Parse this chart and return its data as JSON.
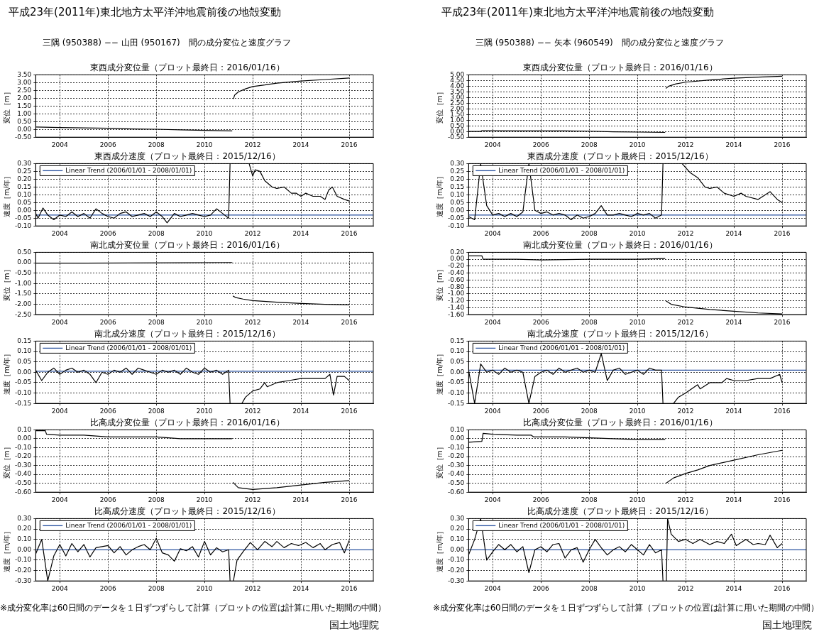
{
  "chart_data": [
    {
      "type": "line",
      "title": "東西成分変位量（プロット最終日：2016/01/16）",
      "ylabel": "変位［m］",
      "grid": true,
      "annotations": [
        "平成23年(2011年)東北地方太平洋沖地震前後の地殻変動",
        "三隅 (950388) −− 山田 (950167)　間の成分変位と速度グラフ"
      ],
      "xlim": [
        2003,
        2017
      ],
      "xticks": [
        2004,
        2006,
        2008,
        2010,
        2012,
        2014,
        2016
      ],
      "ylim": [
        -0.5,
        3.5
      ],
      "yticks": [
        {
          "value": -0.5,
          "label": "-0.50"
        },
        {
          "value": 0,
          "label": "0.00"
        },
        {
          "value": 0.5,
          "label": "0.50"
        },
        {
          "value": 1,
          "label": "1.00"
        },
        {
          "value": 1.5,
          "label": "1.50"
        },
        {
          "value": 2,
          "label": "2.00"
        },
        {
          "value": 2.5,
          "label": "2.50"
        },
        {
          "value": 3,
          "label": "3.00"
        },
        {
          "value": 3.5,
          "label": "3.50"
        }
      ],
      "series": [
        {
          "color": "#000000",
          "x": [
            2003,
            2004,
            2005,
            2006,
            2007,
            2008,
            2009,
            2010,
            2011.15,
            2011.17,
            2011.2,
            2011.25,
            2011.4,
            2011.7,
            2012,
            2012.5,
            2013,
            2014,
            2015,
            2016
          ],
          "values": [
            0.15,
            0.12,
            0.1,
            0.07,
            0.03,
            0.01,
            -0.03,
            -0.06,
            -0.1,
            null,
            1.95,
            2.2,
            2.4,
            2.6,
            2.75,
            2.85,
            2.97,
            3.1,
            3.2,
            3.3
          ]
        }
      ]
    },
    {
      "type": "line",
      "title": "東西成分速度（プロット最終日：2015/12/16）",
      "ylabel": "速度［m/年］",
      "grid": true,
      "legend": "top left",
      "xlim": [
        2003,
        2017
      ],
      "xticks": [
        2004,
        2006,
        2008,
        2010,
        2012,
        2014,
        2016
      ],
      "ylim": [
        -0.1,
        0.3
      ],
      "yticks": [
        {
          "value": -0.1,
          "label": "-0.10"
        },
        {
          "value": -0.05,
          "label": "-0.05"
        },
        {
          "value": 0,
          "label": "0.00"
        },
        {
          "value": 0.05,
          "label": "0.05"
        },
        {
          "value": 0.1,
          "label": "0.10"
        },
        {
          "value": 0.15,
          "label": "0.15"
        },
        {
          "value": 0.2,
          "label": "0.20"
        },
        {
          "value": 0.25,
          "label": "0.25"
        },
        {
          "value": 0.3,
          "label": "0.30"
        }
      ],
      "series": [
        {
          "color": "#000000",
          "x": [
            2003,
            2003.1,
            2003.3,
            2003.5,
            2003.75,
            2004,
            2004.25,
            2004.5,
            2004.75,
            2005,
            2005.25,
            2005.5,
            2005.75,
            2006,
            2006.25,
            2006.5,
            2006.75,
            2007,
            2007.25,
            2007.5,
            2007.75,
            2008,
            2008.25,
            2008.45,
            2008.75,
            2009,
            2009.25,
            2009.5,
            2009.75,
            2010,
            2010.25,
            2010.5,
            2010.75,
            2011,
            2011.06,
            2011.5,
            2011.85,
            2012,
            2012.1,
            2012.3,
            2012.5,
            2012.8,
            2013,
            2013.3,
            2013.6,
            2013.8,
            2014,
            2014.2,
            2014.5,
            2014.8,
            2015,
            2015.15,
            2015.3,
            2015.5,
            2015.8,
            2016
          ],
          "values": [
            -0.02,
            -0.05,
            0.015,
            -0.03,
            -0.06,
            -0.03,
            -0.04,
            -0.01,
            -0.04,
            -0.02,
            -0.05,
            0.01,
            -0.02,
            -0.04,
            -0.05,
            -0.02,
            -0.01,
            -0.04,
            -0.03,
            -0.02,
            -0.04,
            -0.01,
            -0.04,
            -0.08,
            -0.02,
            -0.04,
            -0.03,
            -0.02,
            -0.03,
            -0.04,
            -0.03,
            0.01,
            -0.02,
            -0.05,
            0.3,
            null,
            0.3,
            0.22,
            0.26,
            0.25,
            0.19,
            0.15,
            0.14,
            0.15,
            0.11,
            0.11,
            0.09,
            0.11,
            0.09,
            0.09,
            0.07,
            0.13,
            0.15,
            0.09,
            0.07,
            0.06
          ]
        },
        {
          "name": "Linear Trend (2006/01/01 - 2008/01/01)",
          "color": "#2a52a0",
          "x": [
            2003,
            2017
          ],
          "values": [
            -0.03,
            -0.03
          ]
        }
      ]
    },
    {
      "type": "line",
      "title": "南北成分変位量（プロット最終日：2016/01/16）",
      "ylabel": "変位［m］",
      "grid": true,
      "xlim": [
        2003,
        2017
      ],
      "xticks": [
        2004,
        2006,
        2008,
        2010,
        2012,
        2014,
        2016
      ],
      "ylim": [
        -2.5,
        0.5
      ],
      "yticks": [
        {
          "value": -2.5,
          "label": "-2.50"
        },
        {
          "value": -2,
          "label": "-2.00"
        },
        {
          "value": -1.5,
          "label": "-1.50"
        },
        {
          "value": -1,
          "label": "-1.00"
        },
        {
          "value": -0.5,
          "label": "-0.50"
        },
        {
          "value": 0,
          "label": "0.00"
        },
        {
          "value": 0.5,
          "label": "0.50"
        }
      ],
      "series": [
        {
          "color": "#000000",
          "x": [
            2003,
            2005,
            2007,
            2009,
            2011.15,
            2011.17,
            2011.18,
            2011.3,
            2011.6,
            2012,
            2013,
            2014,
            2015,
            2016
          ],
          "values": [
            -0.02,
            -0.02,
            -0.01,
            0,
            0.01,
            null,
            -1.6,
            -1.68,
            -1.75,
            -1.82,
            -1.9,
            -1.96,
            -2,
            -2.03
          ]
        }
      ]
    },
    {
      "type": "line",
      "title": "南北成分速度（プロット最終日：2015/12/16）",
      "ylabel": "速度［m/年］",
      "grid": true,
      "legend": "top left",
      "xlim": [
        2003,
        2017
      ],
      "xticks": [
        2004,
        2006,
        2008,
        2010,
        2012,
        2014,
        2016
      ],
      "ylim": [
        -0.15,
        0.15
      ],
      "yticks": [
        {
          "value": -0.15,
          "label": "-0.15"
        },
        {
          "value": -0.1,
          "label": "-0.10"
        },
        {
          "value": -0.05,
          "label": "-0.05"
        },
        {
          "value": 0,
          "label": "0.00"
        },
        {
          "value": 0.05,
          "label": "0.05"
        },
        {
          "value": 0.1,
          "label": "0.10"
        },
        {
          "value": 0.15,
          "label": "0.15"
        }
      ],
      "series": [
        {
          "color": "#000000",
          "x": [
            2003,
            2003.25,
            2003.5,
            2003.75,
            2004,
            2004.25,
            2004.5,
            2004.75,
            2005,
            2005.25,
            2005.5,
            2005.75,
            2006,
            2006.25,
            2006.5,
            2006.75,
            2007,
            2007.25,
            2007.5,
            2007.75,
            2008,
            2008.25,
            2008.5,
            2008.75,
            2009,
            2009.25,
            2009.5,
            2009.75,
            2010,
            2010.25,
            2010.5,
            2010.75,
            2011,
            2011.06,
            2011.3,
            2011.55,
            2011.7,
            2012,
            2012.3,
            2012.5,
            2012.6,
            2013,
            2013.5,
            2014,
            2014.5,
            2015,
            2015.2,
            2015.35,
            2015.5,
            2015.8,
            2016
          ],
          "values": [
            0.01,
            -0.04,
            0,
            0.02,
            -0.01,
            0.01,
            0.02,
            0,
            0.01,
            -0.01,
            -0.05,
            0,
            -0.01,
            0.01,
            0,
            0.02,
            -0.01,
            0.02,
            0.01,
            0,
            -0.01,
            0.01,
            0,
            0.01,
            -0.01,
            0.02,
            0,
            -0.01,
            0.02,
            0,
            0.01,
            -0.01,
            0.01,
            -0.15,
            null,
            -0.15,
            -0.12,
            -0.09,
            -0.08,
            -0.05,
            -0.07,
            -0.05,
            -0.04,
            -0.03,
            -0.03,
            -0.03,
            -0.01,
            -0.11,
            -0.02,
            -0.02,
            -0.04
          ]
        },
        {
          "name": "Linear Trend (2006/01/01 - 2008/01/01)",
          "color": "#2a52a0",
          "x": [
            2003,
            2017
          ],
          "values": [
            0.005,
            0.005
          ]
        }
      ]
    },
    {
      "type": "line",
      "title": "比高成分変位量（プロット最終日：2016/01/16）",
      "ylabel": "変位［m］",
      "grid": true,
      "xlim": [
        2003,
        2017
      ],
      "xticks": [
        2004,
        2006,
        2008,
        2010,
        2012,
        2014,
        2016
      ],
      "ylim": [
        -0.6,
        0.1
      ],
      "yticks": [
        {
          "value": -0.6,
          "label": "-0.60"
        },
        {
          "value": -0.5,
          "label": "-0.50"
        },
        {
          "value": -0.4,
          "label": "-0.40"
        },
        {
          "value": -0.3,
          "label": "-0.30"
        },
        {
          "value": -0.2,
          "label": "-0.20"
        },
        {
          "value": -0.1,
          "label": "-0.10"
        },
        {
          "value": 0,
          "label": "0.00"
        },
        {
          "value": 0.1,
          "label": "0.10"
        }
      ],
      "series": [
        {
          "color": "#000000",
          "x": [
            2003,
            2003.4,
            2003.45,
            2004,
            2005,
            2006,
            2007,
            2008,
            2009,
            2010,
            2011.15,
            2011.17,
            2011.18,
            2011.4,
            2012,
            2012.5,
            2013,
            2014,
            2015,
            2016
          ],
          "values": [
            0.09,
            0.09,
            0.05,
            0.04,
            0.04,
            0.02,
            0.02,
            0.02,
            0,
            0,
            0,
            null,
            -0.49,
            -0.55,
            -0.57,
            -0.56,
            -0.55,
            -0.52,
            -0.49,
            -0.47
          ]
        }
      ]
    },
    {
      "type": "line",
      "title": "比高成分速度（プロット最終日：2015/12/16）",
      "ylabel": "速度［m/年］",
      "grid": true,
      "legend": "top left",
      "annotations": [
        "※成分変化率は60日間のデータを１日ずつずらして計算（プロットの位置は計算に用いた期間の中間）",
        "国土地理院"
      ],
      "xlim": [
        2003,
        2017
      ],
      "xticks": [
        2004,
        2006,
        2008,
        2010,
        2012,
        2014,
        2016
      ],
      "ylim": [
        -0.3,
        0.3
      ],
      "yticks": [
        {
          "value": -0.3,
          "label": "-0.30"
        },
        {
          "value": -0.2,
          "label": "-0.20"
        },
        {
          "value": -0.1,
          "label": "-0.10"
        },
        {
          "value": 0,
          "label": "0.00"
        },
        {
          "value": 0.1,
          "label": "0.10"
        },
        {
          "value": 0.2,
          "label": "0.20"
        },
        {
          "value": 0.3,
          "label": "0.30"
        }
      ],
      "series": [
        {
          "color": "#000000",
          "x": [
            2003,
            2003.25,
            2003.5,
            2003.75,
            2004,
            2004.25,
            2004.5,
            2004.75,
            2005,
            2005.25,
            2005.5,
            2005.75,
            2006,
            2006.25,
            2006.5,
            2006.75,
            2007,
            2007.25,
            2007.5,
            2007.75,
            2008,
            2008.25,
            2008.5,
            2008.75,
            2009,
            2009.25,
            2009.5,
            2009.75,
            2010,
            2010.25,
            2010.5,
            2010.75,
            2011,
            2011.06,
            2011.13,
            2011.2,
            2011.35,
            2011.6,
            2011.9,
            2012.2,
            2012.5,
            2012.8,
            2013,
            2013.3,
            2013.6,
            2013.9,
            2014.2,
            2014.5,
            2014.8,
            2015,
            2015.3,
            2015.6,
            2015.8,
            2016
          ],
          "values": [
            -0.04,
            0.1,
            -0.3,
            -0.06,
            0.05,
            -0.06,
            0.06,
            -0.02,
            0.05,
            -0.07,
            0.02,
            0.03,
            0.04,
            -0.03,
            0.03,
            -0.05,
            0,
            0.03,
            0.05,
            0,
            0.11,
            -0.03,
            -0.05,
            -0.11,
            0.01,
            -0.01,
            0.03,
            -0.07,
            0.08,
            -0.05,
            0.02,
            -0.02,
            0,
            -0.3,
            null,
            -0.3,
            -0.1,
            -0.02,
            0.07,
            0,
            0.08,
            0.03,
            0.08,
            0.02,
            0.06,
            0.04,
            0.07,
            0.02,
            0.06,
            0,
            0.05,
            0.07,
            -0.03,
            0.09
          ]
        },
        {
          "name": "Linear Trend (2006/01/01 - 2008/01/01)",
          "color": "#2a52a0",
          "x": [
            2003,
            2017
          ],
          "values": [
            0,
            0
          ]
        }
      ]
    },
    {
      "type": "line",
      "title": "東西成分変位量（プロット最終日：2016/01/16）",
      "ylabel": "変位［m］",
      "grid": true,
      "annotations": [
        "平成23年(2011年)東北地方太平洋沖地震前後の地殻変動",
        "三隅 (950388) −− 矢本 (960549)　間の成分変位と速度グラフ"
      ],
      "xlim": [
        2003,
        2017
      ],
      "xticks": [
        2004,
        2006,
        2008,
        2010,
        2012,
        2014,
        2016
      ],
      "ylim": [
        -0.5,
        5
      ],
      "yticks": [
        {
          "value": -0.5,
          "label": "-0.50"
        },
        {
          "value": 0,
          "label": "0.00"
        },
        {
          "value": 0.5,
          "label": "0.50"
        },
        {
          "value": 1,
          "label": "1.00"
        },
        {
          "value": 1.5,
          "label": "1.50"
        },
        {
          "value": 2,
          "label": "2.00"
        },
        {
          "value": 2.5,
          "label": "2.50"
        },
        {
          "value": 3,
          "label": "3.00"
        },
        {
          "value": 3.5,
          "label": "3.50"
        },
        {
          "value": 4,
          "label": "4.00"
        },
        {
          "value": 4.5,
          "label": "4.50"
        },
        {
          "value": 5,
          "label": "5.00"
        }
      ],
      "series": [
        {
          "color": "#000000",
          "x": [
            2003,
            2003.5,
            2003.55,
            2005,
            2007,
            2008,
            2009,
            2010,
            2011.15,
            2011.17,
            2011.18,
            2011.3,
            2011.6,
            2012,
            2013,
            2014,
            2015,
            2016
          ],
          "values": [
            0,
            0,
            0.07,
            0.05,
            0.05,
            0.03,
            -0.02,
            -0.05,
            -0.08,
            null,
            3.8,
            4,
            4.2,
            4.35,
            4.55,
            4.7,
            4.8,
            4.88
          ]
        }
      ]
    },
    {
      "type": "line",
      "title": "東西成分速度（プロット最終日：2015/12/16）",
      "ylabel": "速度［m/年］",
      "grid": true,
      "legend": "top left",
      "xlim": [
        2003,
        2017
      ],
      "xticks": [
        2004,
        2006,
        2008,
        2010,
        2012,
        2014,
        2016
      ],
      "ylim": [
        -0.1,
        0.3
      ],
      "yticks": [
        {
          "value": -0.1,
          "label": "-0.10"
        },
        {
          "value": -0.05,
          "label": "-0.05"
        },
        {
          "value": 0,
          "label": "0.00"
        },
        {
          "value": 0.05,
          "label": "0.05"
        },
        {
          "value": 0.1,
          "label": "0.10"
        },
        {
          "value": 0.15,
          "label": "0.15"
        },
        {
          "value": 0.2,
          "label": "0.20"
        },
        {
          "value": 0.25,
          "label": "0.25"
        },
        {
          "value": 0.3,
          "label": "0.30"
        }
      ],
      "series": [
        {
          "color": "#000000",
          "x": [
            2003,
            2003.25,
            2003.5,
            2003.75,
            2004,
            2004.25,
            2004.5,
            2004.75,
            2005,
            2005.25,
            2005.5,
            2005.75,
            2006,
            2006.25,
            2006.5,
            2006.75,
            2007,
            2007.25,
            2007.5,
            2007.75,
            2008,
            2008.25,
            2008.5,
            2008.75,
            2009,
            2009.25,
            2009.5,
            2009.75,
            2010,
            2010.25,
            2010.5,
            2010.75,
            2011,
            2011.06,
            2011.5,
            2011.85,
            2012.2,
            2012.5,
            2012.8,
            2013,
            2013.3,
            2013.6,
            2014,
            2014.3,
            2014.5,
            2015,
            2015.5,
            2015.8,
            2016
          ],
          "values": [
            -0.04,
            -0.06,
            0.3,
            0.03,
            -0.03,
            -0.02,
            -0.04,
            -0.02,
            -0.04,
            -0.01,
            0.3,
            0,
            -0.02,
            -0.01,
            -0.03,
            -0.02,
            -0.03,
            -0.06,
            -0.03,
            -0.05,
            -0.04,
            -0.02,
            0.03,
            -0.03,
            -0.03,
            -0.02,
            -0.03,
            -0.04,
            -0.02,
            -0.03,
            -0.02,
            -0.05,
            -0.03,
            0.3,
            null,
            0.3,
            0.24,
            0.21,
            0.15,
            0.14,
            0.15,
            0.11,
            0.09,
            0.11,
            0.09,
            0.07,
            0.12,
            0.07,
            0.05
          ]
        },
        {
          "name": "Linear Trend (2006/01/01 - 2008/01/01)",
          "color": "#2a52a0",
          "x": [
            2003,
            2017
          ],
          "values": [
            -0.03,
            -0.03
          ]
        }
      ]
    },
    {
      "type": "line",
      "title": "南北成分変位量（プロット最終日：2016/01/16）",
      "ylabel": "変位［m］",
      "grid": true,
      "xlim": [
        2003,
        2017
      ],
      "xticks": [
        2004,
        2006,
        2008,
        2010,
        2012,
        2014,
        2016
      ],
      "ylim": [
        -1.6,
        0.2
      ],
      "yticks": [
        {
          "value": -1.6,
          "label": "-1.60"
        },
        {
          "value": -1.4,
          "label": "-1.40"
        },
        {
          "value": -1.2,
          "label": "-1.20"
        },
        {
          "value": -1,
          "label": "-1.00"
        },
        {
          "value": -0.8,
          "label": "-0.80"
        },
        {
          "value": -0.6,
          "label": "-0.60"
        },
        {
          "value": -0.4,
          "label": "-0.40"
        },
        {
          "value": -0.2,
          "label": "-0.20"
        },
        {
          "value": 0,
          "label": "0.00"
        },
        {
          "value": 0.2,
          "label": "0.20"
        }
      ],
      "series": [
        {
          "color": "#000000",
          "x": [
            2003,
            2003.55,
            2003.6,
            2005,
            2006,
            2008,
            2010,
            2011.15,
            2011.17,
            2011.18,
            2011.4,
            2012,
            2013,
            2014,
            2015,
            2016
          ],
          "values": [
            0.1,
            0.1,
            0,
            0,
            -0.02,
            0,
            0,
            0.02,
            null,
            -1.2,
            -1.3,
            -1.38,
            -1.45,
            -1.5,
            -1.55,
            -1.58
          ]
        }
      ]
    },
    {
      "type": "line",
      "title": "南北成分速度（プロット最終日：2015/12/16）",
      "ylabel": "速度［m/年］",
      "grid": true,
      "legend": "top left",
      "xlim": [
        2003,
        2017
      ],
      "xticks": [
        2004,
        2006,
        2008,
        2010,
        2012,
        2014,
        2016
      ],
      "ylim": [
        -0.15,
        0.15
      ],
      "yticks": [
        {
          "value": -0.15,
          "label": "-0.15"
        },
        {
          "value": -0.1,
          "label": "-0.10"
        },
        {
          "value": -0.05,
          "label": "-0.05"
        },
        {
          "value": 0,
          "label": "0.00"
        },
        {
          "value": 0.05,
          "label": "0.05"
        },
        {
          "value": 0.1,
          "label": "0.10"
        },
        {
          "value": 0.15,
          "label": "0.15"
        }
      ],
      "series": [
        {
          "color": "#000000",
          "x": [
            2003,
            2003.25,
            2003.5,
            2003.75,
            2004,
            2004.25,
            2004.5,
            2004.75,
            2005,
            2005.25,
            2005.5,
            2005.75,
            2006,
            2006.25,
            2006.5,
            2006.75,
            2007,
            2007.25,
            2007.5,
            2007.75,
            2008,
            2008.25,
            2008.5,
            2008.75,
            2009,
            2009.25,
            2009.5,
            2009.75,
            2010,
            2010.25,
            2010.5,
            2010.75,
            2011,
            2011.06,
            2011.3,
            2011.5,
            2011.7,
            2012,
            2012.5,
            2012.6,
            2013,
            2013.5,
            2013.7,
            2014,
            2014.5,
            2015,
            2015.5,
            2015.9,
            2016
          ],
          "values": [
            0.01,
            -0.15,
            0.04,
            0,
            0.01,
            -0.01,
            0.02,
            0,
            0.01,
            0,
            -0.15,
            -0.02,
            0,
            0.01,
            -0.01,
            0.02,
            0,
            0.01,
            0.02,
            0,
            0.01,
            0,
            0.09,
            -0.04,
            0.01,
            0.02,
            -0.01,
            0,
            0.01,
            -0.01,
            0.02,
            0.01,
            0.01,
            -0.15,
            null,
            -0.15,
            -0.12,
            -0.1,
            -0.06,
            -0.08,
            -0.05,
            -0.05,
            -0.03,
            -0.04,
            -0.04,
            -0.03,
            -0.03,
            -0.01,
            -0.05
          ]
        },
        {
          "name": "Linear Trend (2006/01/01 - 2008/01/01)",
          "color": "#2a52a0",
          "x": [
            2003,
            2017
          ],
          "values": [
            0.01,
            0.01
          ]
        }
      ]
    },
    {
      "type": "line",
      "title": "比高成分変位量（プロット最終日：2016/01/16）",
      "ylabel": "変位［m］",
      "grid": true,
      "xlim": [
        2003,
        2017
      ],
      "xticks": [
        2004,
        2006,
        2008,
        2010,
        2012,
        2014,
        2016
      ],
      "ylim": [
        -0.6,
        0.1
      ],
      "yticks": [
        {
          "value": -0.6,
          "label": "-0.60"
        },
        {
          "value": -0.5,
          "label": "-0.50"
        },
        {
          "value": -0.4,
          "label": "-0.40"
        },
        {
          "value": -0.3,
          "label": "-0.30"
        },
        {
          "value": -0.2,
          "label": "-0.20"
        },
        {
          "value": -0.1,
          "label": "-0.10"
        },
        {
          "value": 0,
          "label": "0.00"
        },
        {
          "value": 0.1,
          "label": "0.10"
        }
      ],
      "series": [
        {
          "color": "#000000",
          "x": [
            2003,
            2003.55,
            2003.6,
            2004,
            2005,
            2005.6,
            2005.7,
            2007,
            2008,
            2009,
            2010,
            2011.15,
            2011.17,
            2011.18,
            2011.5,
            2012,
            2012.5,
            2013,
            2014,
            2015,
            2016
          ],
          "values": [
            -0.04,
            -0.03,
            0.06,
            0.05,
            0.04,
            0.04,
            0.02,
            0.02,
            0.01,
            0,
            -0.01,
            -0.01,
            null,
            -0.5,
            -0.44,
            -0.39,
            -0.35,
            -0.3,
            -0.24,
            -0.18,
            -0.13
          ]
        }
      ]
    },
    {
      "type": "line",
      "title": "比高成分速度（プロット最終日：2015/12/16）",
      "ylabel": "速度［m/年］",
      "grid": true,
      "legend": "top left",
      "annotations": [
        "※成分変化率は60日間のデータを１日ずつずらして計算（プロットの位置は計算に用いた期間の中間）",
        "国土地理院"
      ],
      "xlim": [
        2003,
        2017
      ],
      "xticks": [
        2004,
        2006,
        2008,
        2010,
        2012,
        2014,
        2016
      ],
      "ylim": [
        -0.3,
        0.3
      ],
      "yticks": [
        {
          "value": -0.3,
          "label": "-0.30"
        },
        {
          "value": -0.2,
          "label": "-0.20"
        },
        {
          "value": -0.1,
          "label": "-0.10"
        },
        {
          "value": 0,
          "label": "0.00"
        },
        {
          "value": 0.1,
          "label": "0.10"
        },
        {
          "value": 0.2,
          "label": "0.20"
        },
        {
          "value": 0.3,
          "label": "0.30"
        }
      ],
      "series": [
        {
          "color": "#000000",
          "x": [
            2003,
            2003.25,
            2003.5,
            2003.75,
            2004,
            2004.25,
            2004.5,
            2004.75,
            2005,
            2005.25,
            2005.5,
            2005.75,
            2006,
            2006.25,
            2006.5,
            2006.75,
            2007,
            2007.25,
            2007.5,
            2007.75,
            2008,
            2008.25,
            2008.5,
            2008.75,
            2009,
            2009.25,
            2009.5,
            2009.75,
            2010,
            2010.25,
            2010.5,
            2010.75,
            2011,
            2011.06,
            2011.13,
            2011.2,
            2011.25,
            2011.4,
            2011.7,
            2012,
            2012.3,
            2012.6,
            2013,
            2013.3,
            2013.6,
            2013.9,
            2014.1,
            2014.5,
            2014.8,
            2015,
            2015.3,
            2015.5,
            2015.8,
            2016
          ],
          "values": [
            -0.05,
            0.1,
            0.3,
            -0.1,
            -0.02,
            0.05,
            0,
            0.05,
            -0.02,
            0.03,
            -0.22,
            0,
            0.03,
            -0.02,
            0.05,
            0.06,
            -0.08,
            0,
            0.02,
            -0.12,
            0,
            0.1,
            0.02,
            -0.05,
            0,
            0.03,
            -0.02,
            0.05,
            0,
            -0.05,
            0.05,
            -0.03,
            0,
            -0.3,
            null,
            -0.3,
            0.3,
            0.15,
            0.08,
            0.1,
            0.06,
            0.1,
            0.05,
            0.08,
            0.06,
            0.15,
            0.04,
            0.1,
            0.05,
            0.06,
            0.05,
            0.14,
            0.02,
            0.06
          ]
        },
        {
          "name": "Linear Trend (2006/01/01 - 2008/01/01)",
          "color": "#2a52a0",
          "x": [
            2003,
            2017
          ],
          "values": [
            0,
            0
          ]
        }
      ]
    }
  ]
}
